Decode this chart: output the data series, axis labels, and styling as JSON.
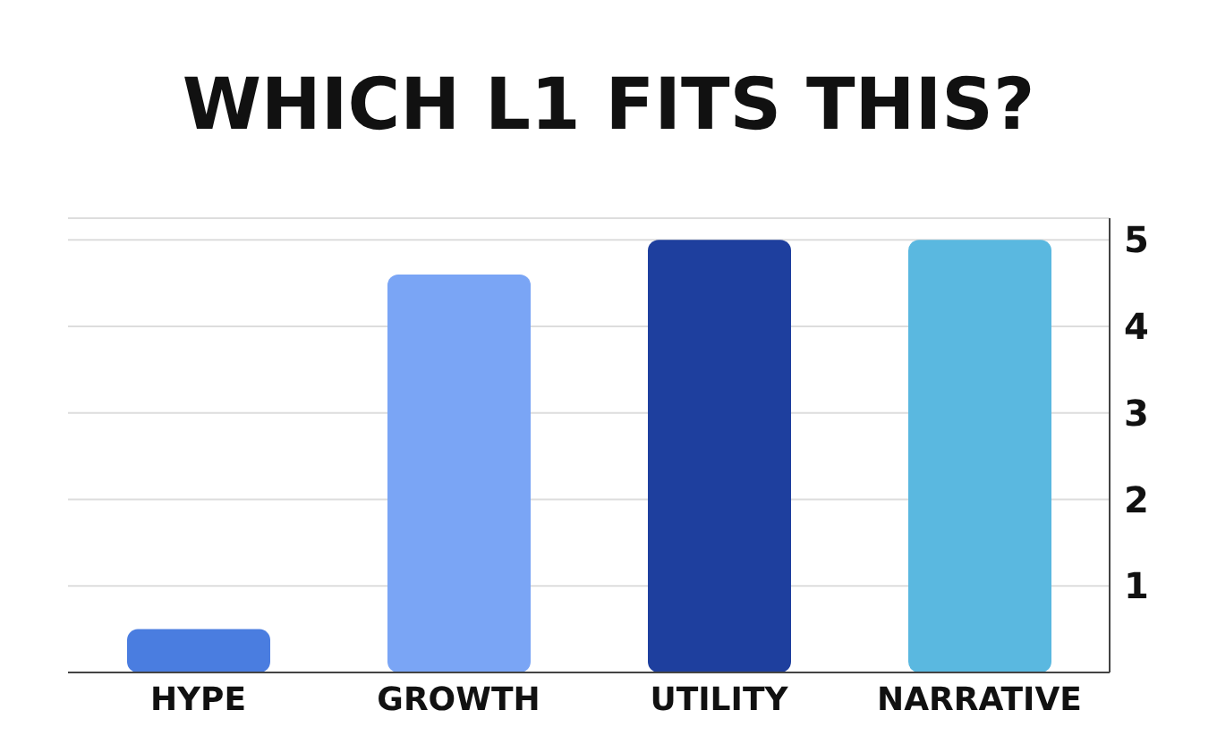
{
  "chart_data": {
    "type": "bar",
    "title": "WHICH L1 FITS THIS?",
    "categories": [
      "HYPE",
      "GROWTH",
      "UTILITY",
      "NARRATIVE"
    ],
    "values": [
      0.5,
      4.6,
      5.0,
      5.0
    ],
    "colors": [
      "#4a7de0",
      "#7aa5f5",
      "#1e3f9e",
      "#5ab8e0"
    ],
    "ylim": [
      0,
      5.25
    ],
    "yticks": [
      1,
      2,
      3,
      4,
      5
    ],
    "grid": "y"
  }
}
